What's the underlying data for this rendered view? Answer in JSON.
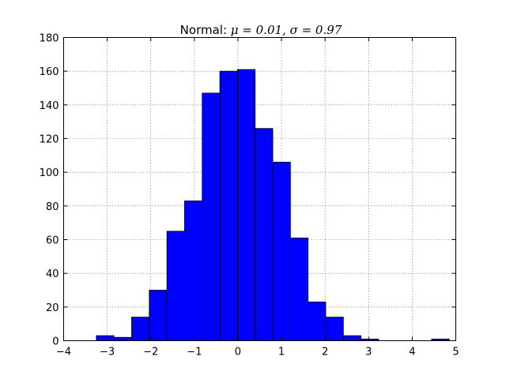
{
  "chart_data": {
    "type": "bar",
    "subtype": "histogram",
    "title": "Normal: ",
    "title_math": "μ = 0.01, σ = 0.97",
    "xlabel": "",
    "ylabel": "",
    "xlim": [
      -4,
      5
    ],
    "ylim": [
      0,
      180
    ],
    "xticks": [
      -4,
      -3,
      -2,
      -1,
      0,
      1,
      2,
      3,
      4,
      5
    ],
    "yticks": [
      0,
      20,
      40,
      60,
      80,
      100,
      120,
      140,
      160,
      180
    ],
    "grid": true,
    "bar_color": "#0000ff",
    "bin_start": -3.25,
    "bin_width": 0.405,
    "values": [
      3,
      2,
      14,
      30,
      65,
      83,
      147,
      160,
      161,
      126,
      106,
      61,
      23,
      14,
      3,
      1,
      0,
      0,
      0,
      1
    ]
  }
}
